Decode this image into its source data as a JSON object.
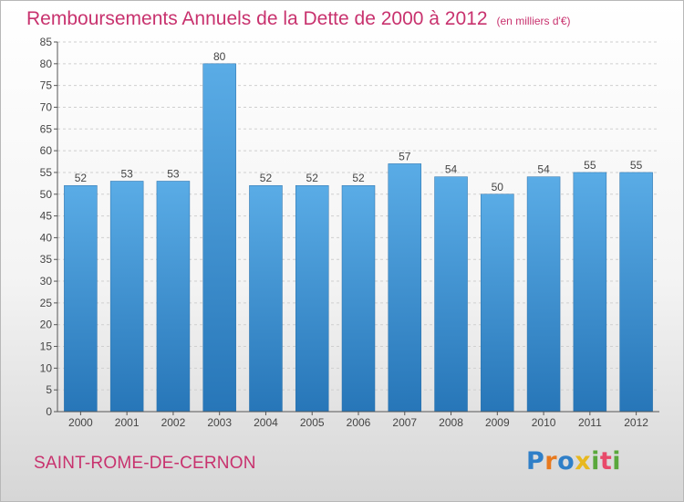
{
  "header": {
    "title": "Remboursements Annuels de la Dette de 2000 à 2012",
    "unit": "(en milliers d'€)"
  },
  "footer": {
    "commune": "SAINT-ROME-DE-CERNON",
    "brand": "Proxiti",
    "brand_colors": [
      "#2f7fc8",
      "#e8791e",
      "#2f7fc8",
      "#e8b81e",
      "#5aa83c",
      "#e84a6a",
      "#5aa83c"
    ]
  },
  "chart_data": {
    "type": "bar",
    "title": "Remboursements Annuels de la Dette de 2000 à 2012",
    "categories": [
      "2000",
      "2001",
      "2002",
      "2003",
      "2004",
      "2005",
      "2006",
      "2007",
      "2008",
      "2009",
      "2010",
      "2011",
      "2012"
    ],
    "values": [
      52,
      53,
      53,
      80,
      52,
      52,
      52,
      57,
      54,
      50,
      54,
      55,
      55
    ],
    "ylim": [
      0,
      85
    ],
    "yticks": [
      0,
      5,
      10,
      15,
      20,
      25,
      30,
      35,
      40,
      45,
      50,
      55,
      60,
      65,
      70,
      75,
      80,
      85
    ],
    "grid": true,
    "bar_color_top": "#5aace6",
    "bar_color_bottom": "#2776b8"
  }
}
